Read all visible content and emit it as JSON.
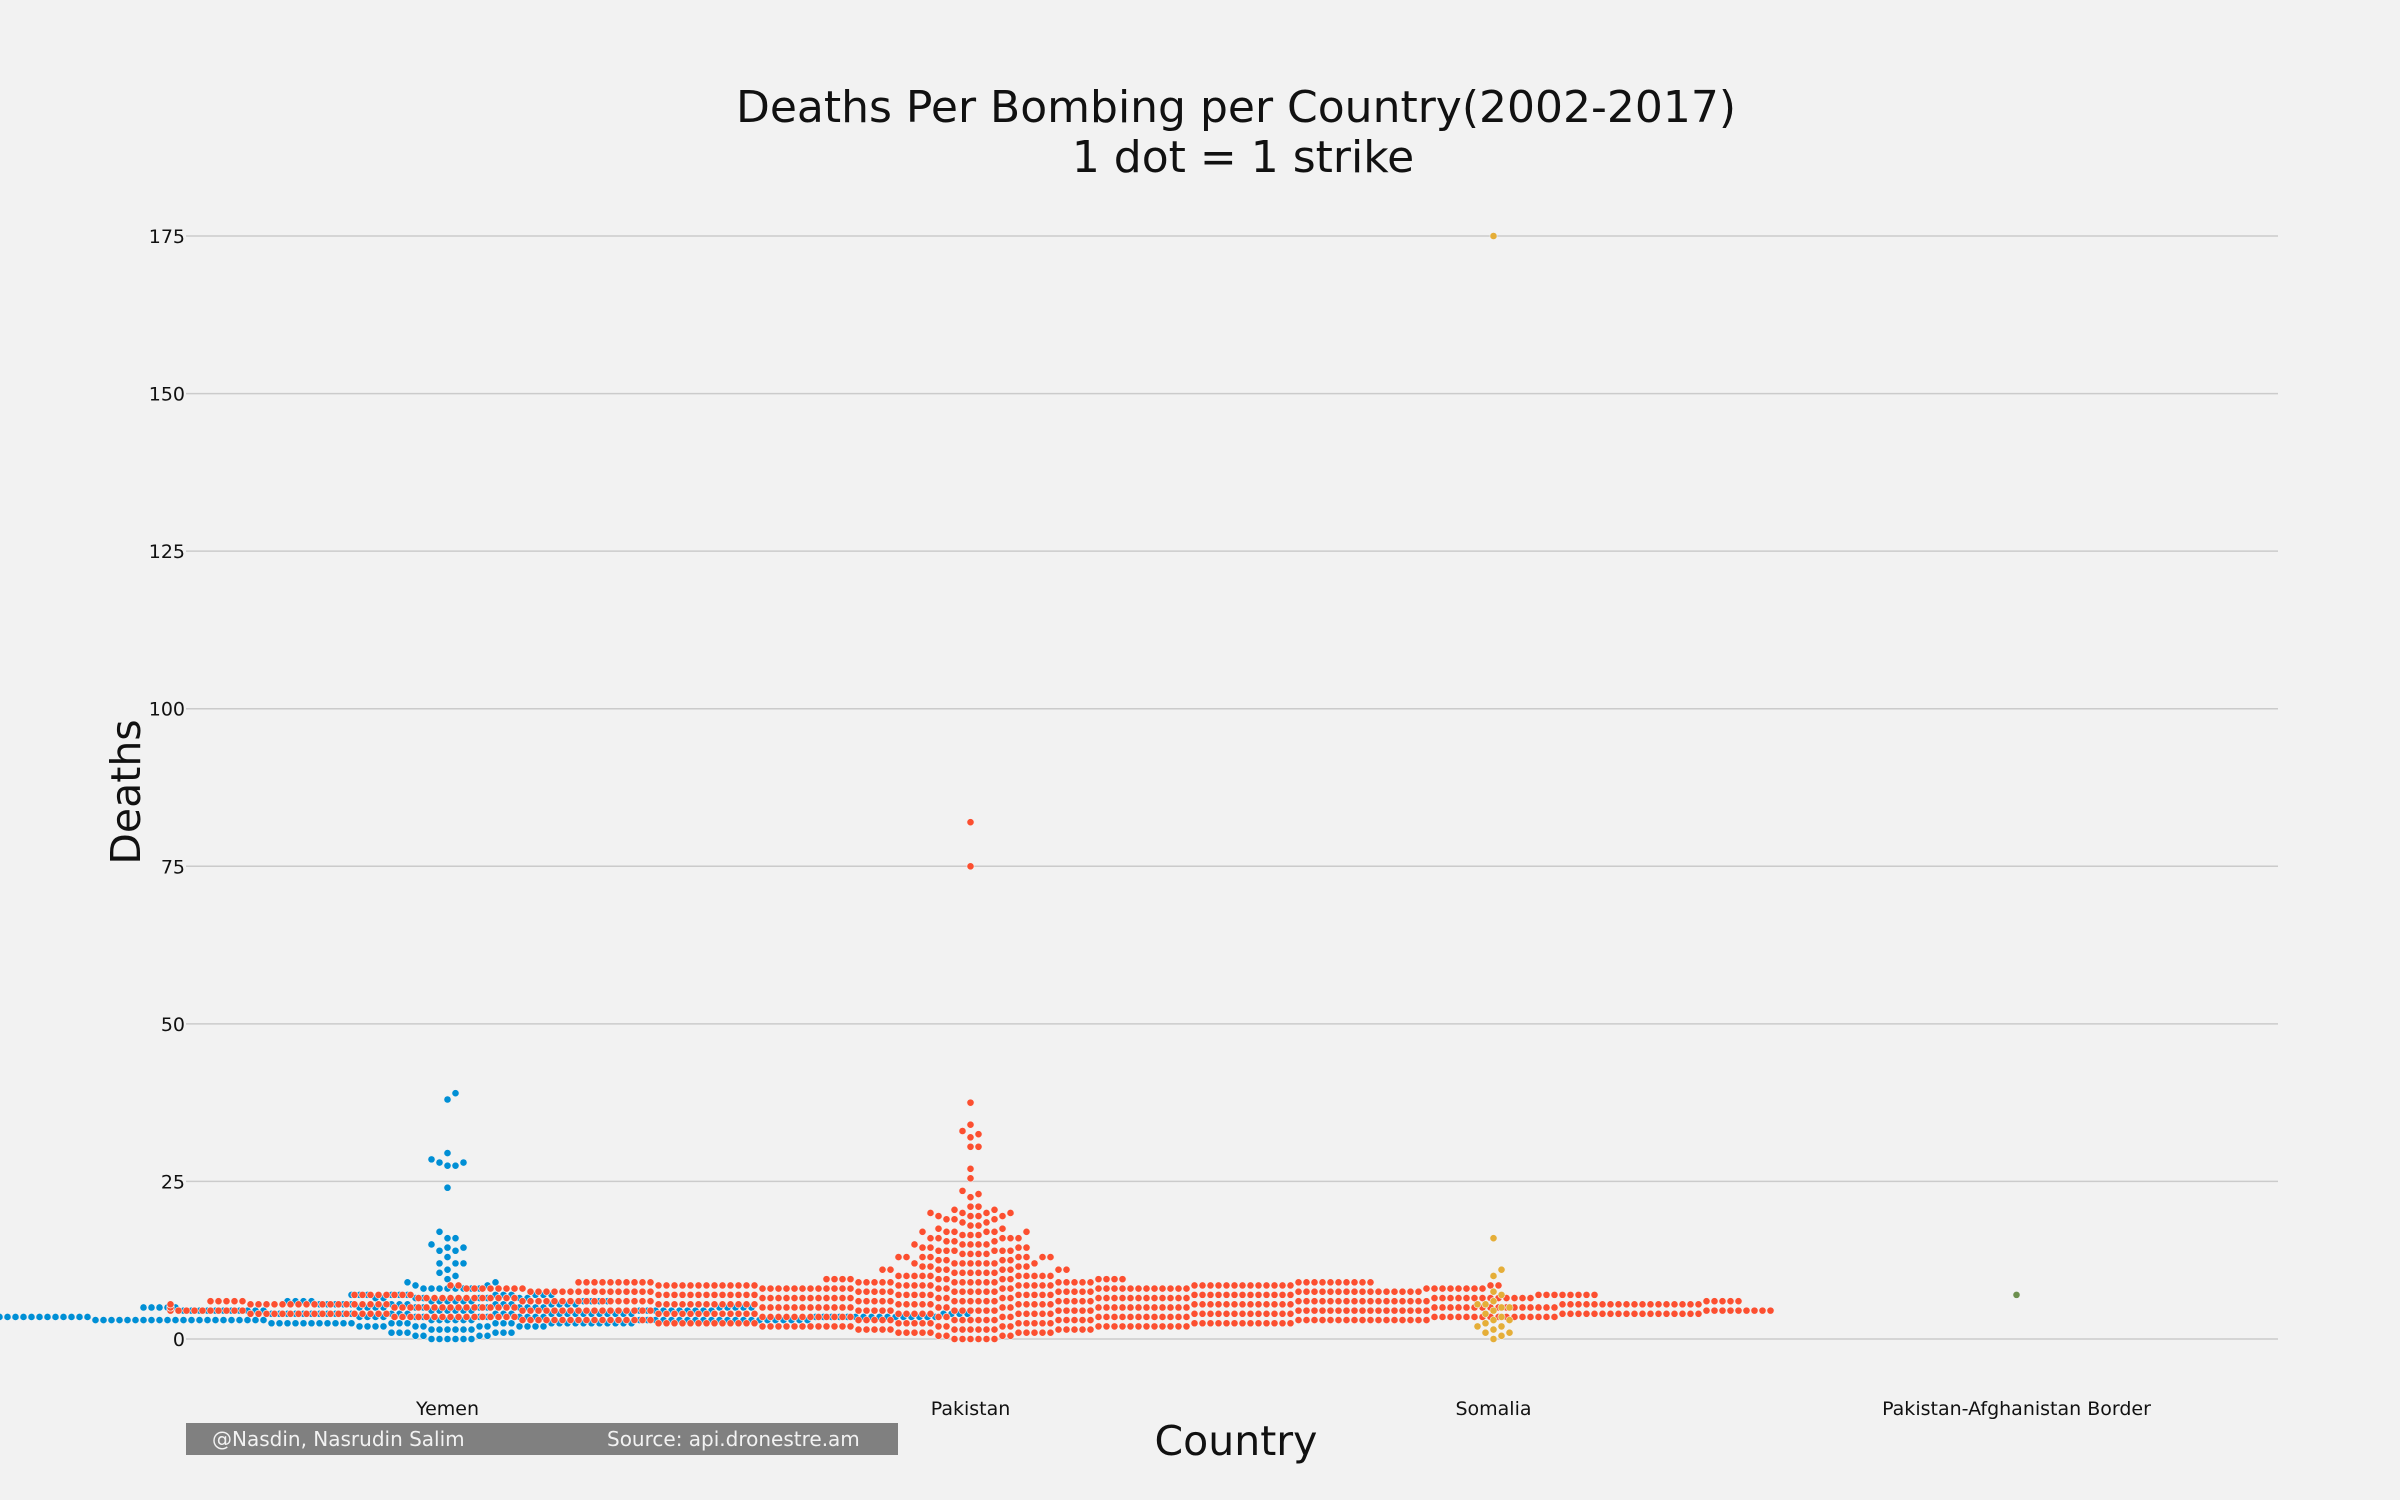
{
  "chart_data": {
    "type": "scatter",
    "subtype": "swarm",
    "title": "Deaths Per Bombing per Country(2002-2017)",
    "subtitle": "1 dot = 1 strike",
    "xlabel": "Country",
    "ylabel": "Deaths",
    "categories": [
      "Yemen",
      "Pakistan",
      "Somalia",
      "Pakistan-Afghanistan Border"
    ],
    "ylim": [
      -8,
      182
    ],
    "yticks": [
      0,
      25,
      50,
      75,
      100,
      125,
      150,
      175
    ],
    "grid": "horizontal",
    "legend": "none",
    "series": [
      {
        "category": "Yemen",
        "color": "#008fd5",
        "values": [
          39,
          38,
          29.5,
          28.5,
          28,
          28,
          27.5,
          27.5,
          24,
          17,
          16,
          16,
          15,
          14.5,
          14.5,
          14,
          14,
          13,
          12,
          12,
          12,
          11,
          10.5,
          10,
          9.5,
          9,
          9,
          8.5,
          8.5,
          8,
          8,
          8,
          8,
          8,
          8,
          8,
          8,
          7,
          7,
          7,
          7,
          7,
          7,
          7,
          7,
          7,
          7,
          7,
          7,
          6.5,
          6.5,
          6.5,
          6.5,
          6.5,
          6.5,
          6.5,
          6.5,
          6,
          6,
          6,
          6,
          6,
          6,
          6,
          6,
          6,
          6,
          6,
          6,
          6,
          6,
          5.5,
          5.5,
          5.5,
          5.5,
          5.5,
          5.5,
          5.5,
          5.5,
          5.5,
          5.5,
          5.5,
          5.5,
          5.5,
          5.5,
          5.5,
          5,
          5,
          5,
          5,
          5,
          5,
          5,
          5,
          5,
          5,
          5,
          5,
          5,
          5,
          5,
          5,
          5,
          5,
          5,
          5,
          5,
          5,
          4.5,
          4.5,
          4.5,
          4.5,
          4.5,
          4.5,
          4.5,
          4.5,
          4.5,
          4.5,
          4.5,
          4.5,
          4.5,
          4.5,
          4.5,
          4.5,
          4.5,
          4.5,
          4.5,
          4.5,
          4.5,
          4.5,
          4.5,
          4.5,
          4.5,
          4.5,
          4.5,
          4,
          4,
          4,
          4,
          4,
          4,
          4,
          4,
          4,
          4,
          4,
          4,
          4,
          4,
          4,
          4,
          4,
          4,
          4,
          4,
          4,
          4,
          4,
          4,
          4,
          4,
          4,
          4,
          4,
          4,
          4,
          4,
          4,
          4,
          4,
          4,
          3.5,
          3.5,
          3.5,
          3.5,
          3.5,
          3.5,
          3.5,
          3.5,
          3.5,
          3.5,
          3.5,
          3.5,
          3.5,
          3.5,
          3.5,
          3.5,
          3.5,
          3.5,
          3.5,
          3.5,
          3.5,
          3.5,
          3.5,
          3.5,
          3.5,
          3.5,
          3.5,
          3.5,
          3.5,
          3.5,
          3.5,
          3.5,
          3.5,
          3.5,
          3.5,
          3.5,
          3.5,
          3.5,
          3.5,
          3.5,
          3.5,
          3.5,
          3.5,
          3.5,
          3.5,
          3,
          3,
          3,
          3,
          3,
          3,
          3,
          3,
          3,
          3,
          3,
          3,
          3,
          3,
          3,
          3,
          3,
          3,
          3,
          3,
          3,
          3,
          3,
          3,
          3,
          3,
          3,
          3,
          3,
          3,
          3,
          3,
          3,
          3,
          3,
          3,
          3,
          3,
          3,
          3,
          3,
          3,
          3,
          3,
          3,
          3,
          3,
          3,
          3,
          3,
          2.5,
          2.5,
          2.5,
          2.5,
          2.5,
          2.5,
          2.5,
          2.5,
          2.5,
          2.5,
          2.5,
          2.5,
          2.5,
          2.5,
          2.5,
          2.5,
          2.5,
          2.5,
          2.5,
          2.5,
          2.5,
          2.5,
          2.5,
          2.5,
          2.5,
          2.5,
          2.5,
          2.5,
          2,
          2,
          2,
          2,
          2,
          2,
          2,
          2,
          2,
          2,
          2,
          2,
          1.5,
          1.5,
          1.5,
          1.5,
          1.5,
          1.5,
          1,
          1,
          1,
          1,
          1,
          1,
          0.5,
          0.5,
          0.5,
          0.5,
          0,
          0,
          0,
          0,
          0,
          0
        ]
      },
      {
        "category": "Pakistan",
        "color": "#fc4f30",
        "values": [
          82,
          75,
          37.5,
          34,
          33,
          32.5,
          32,
          30.5,
          30.5,
          27,
          25.5,
          23.5,
          23,
          22.5,
          21,
          21,
          20.5,
          20.5,
          20,
          20,
          20,
          20,
          19.5,
          19.5,
          19.5,
          19.5,
          19,
          19,
          19,
          18.5,
          18.5,
          18,
          18,
          17.5,
          17.5,
          17,
          17,
          17,
          17,
          17,
          17,
          16.5,
          16.5,
          16.5,
          16,
          16,
          16,
          16,
          16,
          15.5,
          15.5,
          15.5,
          15,
          15,
          15,
          15,
          15,
          14.5,
          14.5,
          14.5,
          14.5,
          14,
          14,
          14,
          14,
          14,
          14,
          13.5,
          13.5,
          13.5,
          13.5,
          13,
          13,
          13,
          13,
          13,
          13,
          13,
          13,
          12.5,
          12.5,
          12.5,
          12.5,
          12,
          12,
          12,
          12,
          12,
          12,
          12,
          12,
          11.5,
          11.5,
          11.5,
          11.5,
          11,
          11,
          11,
          11,
          11,
          11,
          11,
          11,
          10.5,
          10.5,
          10.5,
          10.5,
          10.5,
          10.5,
          10,
          10,
          10,
          10,
          10,
          10,
          10,
          10,
          10,
          10,
          9.5,
          9.5,
          9.5,
          9.5,
          9.5,
          9.5,
          9.5,
          9.5,
          9.5,
          9.5,
          9.5,
          9.5,
          9,
          9,
          9,
          9,
          9,
          9,
          9,
          9,
          9,
          9,
          9,
          9,
          9,
          9,
          9,
          9,
          9,
          9,
          9,
          9,
          9,
          9,
          9,
          9,
          9,
          9,
          9,
          9,
          9,
          9,
          9,
          9,
          9,
          9,
          9,
          9,
          8.5,
          8.5,
          8.5,
          8.5,
          8.5,
          8.5,
          8.5,
          8.5,
          8.5,
          8.5,
          8.5,
          8.5,
          8.5,
          8.5,
          8.5,
          8.5,
          8.5,
          8.5,
          8.5,
          8.5,
          8.5,
          8.5,
          8.5,
          8.5,
          8.5,
          8.5,
          8.5,
          8.5,
          8.5,
          8.5,
          8.5,
          8.5,
          8.5,
          8.5,
          8.5,
          8.5,
          8.5,
          8.5,
          8.5,
          8.5,
          8,
          8,
          8,
          8,
          8,
          8,
          8,
          8,
          8,
          8,
          8,
          8,
          8,
          8,
          8,
          8,
          8,
          8,
          8,
          8,
          8,
          8,
          8,
          8,
          8,
          8,
          8,
          8,
          8,
          8,
          8,
          8,
          8,
          8,
          8,
          8,
          8,
          8,
          8,
          8,
          8,
          8,
          8,
          8,
          7.5,
          7.5,
          7.5,
          7.5,
          7.5,
          7.5,
          7.5,
          7.5,
          7.5,
          7.5,
          7.5,
          7.5,
          7.5,
          7.5,
          7.5,
          7.5,
          7.5,
          7.5,
          7.5,
          7.5,
          7.5,
          7.5,
          7.5,
          7.5,
          7.5,
          7.5,
          7.5,
          7.5,
          7.5,
          7.5,
          7.5,
          7.5,
          7.5,
          7.5,
          7.5,
          7.5,
          7.5,
          7.5,
          7.5,
          7.5,
          7.5,
          7.5,
          7.5,
          7.5,
          7.5,
          7.5,
          7.5,
          7.5,
          7,
          7,
          7,
          7,
          7,
          7,
          7,
          7,
          7,
          7,
          7,
          7,
          7,
          7,
          7,
          7,
          7,
          7,
          7,
          7,
          7,
          7,
          7,
          7,
          7,
          7,
          7,
          7,
          7,
          7,
          7,
          7,
          7,
          7,
          7,
          7,
          7,
          7,
          7,
          7,
          7,
          7,
          7,
          7,
          7,
          7,
          7,
          7,
          7,
          7,
          7,
          7,
          6.5,
          6.5,
          6.5,
          6.5,
          6.5,
          6.5,
          6.5,
          6.5,
          6.5,
          6.5,
          6.5,
          6.5,
          6.5,
          6.5,
          6.5,
          6.5,
          6.5,
          6.5,
          6.5,
          6.5,
          6.5,
          6.5,
          6.5,
          6.5,
          6.5,
          6.5,
          6.5,
          6.5,
          6.5,
          6.5,
          6.5,
          6.5,
          6.5,
          6.5,
          6.5,
          6.5,
          6.5,
          6.5,
          6.5,
          6.5,
          6.5,
          6.5,
          6.5,
          6.5,
          6.5,
          6.5,
          6.5,
          6.5,
          6.5,
          6.5,
          6.5,
          6.5,
          6.5,
          6.5,
          6,
          6,
          6,
          6,
          6,
          6,
          6,
          6,
          6,
          6,
          6,
          6,
          6,
          6,
          6,
          6,
          6,
          6,
          6,
          6,
          6,
          6,
          6,
          6,
          6,
          6,
          6,
          6,
          6,
          6,
          6,
          6,
          6,
          6,
          6,
          6,
          6,
          6,
          6,
          6,
          6,
          6,
          6,
          6,
          6,
          6,
          6,
          6,
          6,
          6,
          6,
          6,
          6,
          6,
          6,
          6,
          6,
          6,
          6,
          6,
          5.5,
          5.5,
          5.5,
          5.5,
          5.5,
          5.5,
          5.5,
          5.5,
          5.5,
          5.5,
          5.5,
          5.5,
          5.5,
          5.5,
          5.5,
          5.5,
          5.5,
          5.5,
          5.5,
          5.5,
          5.5,
          5.5,
          5.5,
          5.5,
          5.5,
          5.5,
          5.5,
          5.5,
          5.5,
          5.5,
          5.5,
          5.5,
          5.5,
          5.5,
          5.5,
          5.5,
          5.5,
          5.5,
          5.5,
          5.5,
          5.5,
          5.5,
          5.5,
          5.5,
          5.5,
          5.5,
          5.5,
          5.5,
          5.5,
          5.5,
          5.5,
          5.5,
          5.5,
          5.5,
          5.5,
          5.5,
          5.5,
          5.5,
          5.5,
          5.5,
          5.5,
          5.5,
          5.5,
          5.5,
          5.5,
          5.5,
          5.5,
          5.5,
          5.5,
          5.5,
          5.5,
          5.5,
          5.5,
          5.5,
          5,
          5,
          5,
          5,
          5,
          5,
          5,
          5,
          5,
          5,
          5,
          5,
          5,
          5,
          5,
          5,
          5,
          5,
          5,
          5,
          5,
          5,
          5,
          5,
          5,
          5,
          5,
          5,
          5,
          5,
          5,
          5,
          5,
          5,
          5,
          5,
          5,
          5,
          5,
          5,
          5,
          5,
          5,
          5,
          5,
          5,
          5,
          5,
          5,
          5,
          5,
          5,
          5,
          5,
          5,
          5,
          5,
          5,
          5,
          5,
          5,
          5,
          5,
          5,
          5,
          5,
          5,
          5,
          5,
          5,
          5,
          5,
          5,
          5,
          5,
          5,
          5,
          5,
          5,
          5,
          4.5,
          4.5,
          4.5,
          4.5,
          4.5,
          4.5,
          4.5,
          4.5,
          4.5,
          4.5,
          4.5,
          4.5,
          4.5,
          4.5,
          4.5,
          4.5,
          4.5,
          4.5,
          4.5,
          4.5,
          4.5,
          4.5,
          4.5,
          4.5,
          4.5,
          4.5,
          4.5,
          4.5,
          4.5,
          4.5,
          4.5,
          4.5,
          4.5,
          4.5,
          4.5,
          4.5,
          4.5,
          4.5,
          4.5,
          4.5,
          4.5,
          4.5,
          4.5,
          4.5,
          4.5,
          4.5,
          4.5,
          4.5,
          4.5,
          4.5,
          4.5,
          4.5,
          4.5,
          4.5,
          4.5,
          4.5,
          4.5,
          4.5,
          4.5,
          4.5,
          4.5,
          4.5,
          4.5,
          4.5,
          4.5,
          4.5,
          4.5,
          4.5,
          4.5,
          4.5,
          4.5,
          4.5,
          4.5,
          4.5,
          4.5,
          4.5,
          4.5,
          4.5,
          4,
          4,
          4,
          4,
          4,
          4,
          4,
          4,
          4,
          4,
          4,
          4,
          4,
          4,
          4,
          4,
          4,
          4,
          4,
          4,
          4,
          4,
          4,
          4,
          4,
          4,
          4,
          4,
          4,
          4,
          4,
          4,
          4,
          4,
          4,
          4,
          4,
          4,
          4,
          4,
          4,
          4,
          4,
          4,
          4,
          4,
          4,
          4,
          4,
          4,
          4,
          4,
          4,
          4,
          4,
          4,
          4,
          4,
          4,
          4,
          4,
          4,
          4,
          4,
          4,
          4,
          4,
          4,
          4,
          4,
          4,
          4,
          3.5,
          3.5,
          3.5,
          3.5,
          3.5,
          3.5,
          3.5,
          3.5,
          3.5,
          3.5,
          3.5,
          3.5,
          3.5,
          3.5,
          3.5,
          3.5,
          3.5,
          3.5,
          3.5,
          3.5,
          3.5,
          3.5,
          3.5,
          3.5,
          3.5,
          3.5,
          3.5,
          3.5,
          3.5,
          3.5,
          3.5,
          3.5,
          3.5,
          3.5,
          3.5,
          3.5,
          3.5,
          3.5,
          3.5,
          3.5,
          3.5,
          3.5,
          3.5,
          3.5,
          3.5,
          3.5,
          3.5,
          3.5,
          3.5,
          3.5,
          3.5,
          3.5,
          3.5,
          3.5,
          3.5,
          3.5,
          3.5,
          3.5,
          3.5,
          3.5,
          3,
          3,
          3,
          3,
          3,
          3,
          3,
          3,
          3,
          3,
          3,
          3,
          3,
          3,
          3,
          3,
          3,
          3,
          3,
          3,
          3,
          3,
          3,
          3,
          3,
          3,
          3,
          3,
          3,
          3,
          3,
          3,
          3,
          3,
          3,
          3,
          3,
          3,
          3,
          3,
          3,
          3,
          3,
          3,
          3,
          3,
          3,
          3,
          3,
          3,
          2.5,
          2.5,
          2.5,
          2.5,
          2.5,
          2.5,
          2.5,
          2.5,
          2.5,
          2.5,
          2.5,
          2.5,
          2.5,
          2.5,
          2.5,
          2.5,
          2.5,
          2.5,
          2.5,
          2.5,
          2.5,
          2.5,
          2.5,
          2.5,
          2.5,
          2.5,
          2.5,
          2.5,
          2.5,
          2.5,
          2.5,
          2.5,
          2.5,
          2.5,
          2.5,
          2.5,
          2,
          2,
          2,
          2,
          2,
          2,
          2,
          2,
          2,
          2,
          2,
          2,
          2,
          2,
          2,
          2,
          2,
          2,
          2,
          2,
          2,
          2,
          2,
          2,
          2,
          2,
          2,
          2,
          1.5,
          1.5,
          1.5,
          1.5,
          1.5,
          1.5,
          1.5,
          1.5,
          1.5,
          1.5,
          1.5,
          1.5,
          1.5,
          1.5,
          1.5,
          1.5,
          1,
          1,
          1,
          1,
          1,
          1,
          1,
          1,
          1,
          1,
          0.5,
          0.5,
          0.5,
          0.5,
          0,
          0,
          0,
          0,
          0,
          0
        ]
      },
      {
        "category": "Somalia",
        "color": "#e5ae38",
        "values": [
          175,
          16,
          11,
          10,
          7.5,
          7,
          6,
          5.5,
          5.5,
          5,
          5,
          4.5,
          4,
          3.5,
          3,
          3,
          2.5,
          2,
          2,
          1.5,
          1,
          1,
          0.5,
          0
        ]
      },
      {
        "category": "Pakistan-Afghanistan Border",
        "color": "#6d904f",
        "values": [
          7
        ]
      }
    ]
  },
  "credit": {
    "author": "@Nasdin, Nasrudin Salim",
    "source": "Source: api.dronestre.am"
  }
}
